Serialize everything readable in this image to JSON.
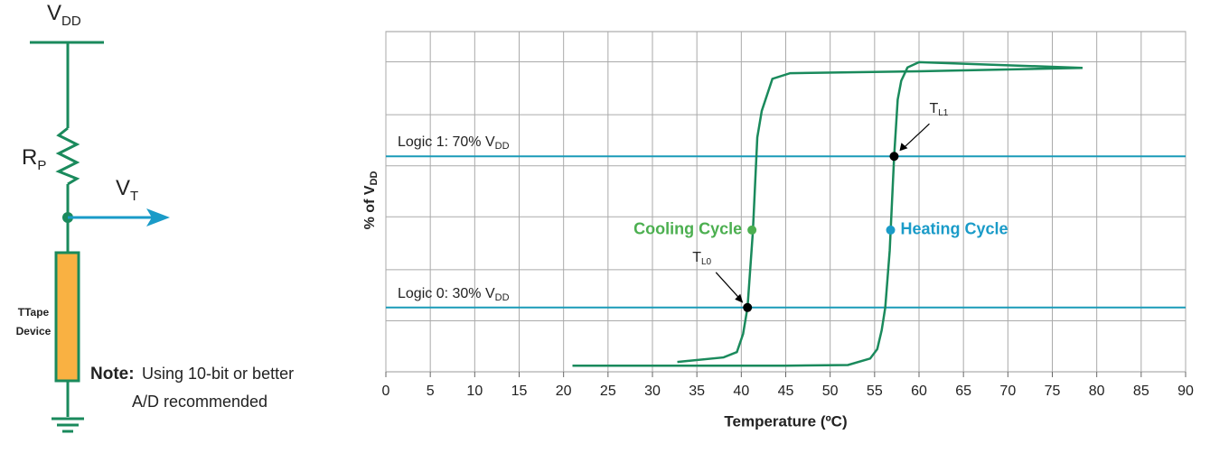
{
  "diagram": {
    "supply": {
      "text": "V",
      "sub": "DD"
    },
    "resistor": {
      "text": "R",
      "sub": "P"
    },
    "output": {
      "text": "V",
      "sub": "T"
    },
    "device": [
      "TTape",
      "Device"
    ],
    "note": {
      "label": "Note:",
      "lines": [
        "Using 10-bit or better",
        "A/D recommended"
      ]
    }
  },
  "chart_data": {
    "type": "line",
    "x_label": "Temperature (ºC)",
    "y_label": {
      "text": "% of V",
      "sub": "DD"
    },
    "xlim": [
      0,
      90
    ],
    "xticks": [
      0,
      5,
      10,
      15,
      20,
      25,
      30,
      35,
      40,
      45,
      50,
      55,
      60,
      65,
      70,
      75,
      80,
      85,
      90
    ],
    "ylim": [
      13,
      103
    ],
    "yticks": [
      26.5,
      40,
      54,
      67.5,
      81,
      95
    ],
    "grid": true,
    "series": [
      {
        "name": "Heating Cycle",
        "color": "#1a8a5c",
        "x": [
          21,
          45,
          52,
          54.5,
          55.3,
          55.8,
          56.2,
          56.7,
          57.2,
          57.6,
          58,
          58.7,
          60,
          78.4
        ],
        "values": [
          14.6,
          14.6,
          14.8,
          16.5,
          19,
          24,
          30,
          45,
          70,
          85,
          90,
          93.5,
          94.9,
          93.4
        ]
      },
      {
        "name": "Cooling Cycle",
        "color": "#1a8a5c",
        "x": [
          78.4,
          60,
          45.5,
          43.5,
          42.3,
          41.8,
          41.3,
          40.7,
          40.2,
          39.5,
          38,
          32.8
        ],
        "values": [
          93.4,
          92.5,
          92,
          90.5,
          82,
          75,
          50,
          30,
          23,
          18.2,
          16.8,
          15.6
        ]
      }
    ],
    "thresholds": [
      {
        "text": "Logic 1: 70% V",
        "sub": "DD",
        "value": 70,
        "color": "#1a9bb8"
      },
      {
        "text": "Logic 0: 30% V",
        "sub": "DD",
        "value": 30,
        "color": "#1a9bb8"
      }
    ],
    "points": [
      {
        "text": "T",
        "sub": "L1",
        "x": 57.2,
        "y": 70
      },
      {
        "text": "T",
        "sub": "L0",
        "x": 40.7,
        "y": 30
      }
    ],
    "cycle_labels": [
      {
        "text": "Cooling Cycle",
        "x": 41.2,
        "y": 50.5,
        "color": "#4caf50",
        "side": "left"
      },
      {
        "text": "Heating Cycle",
        "x": 56.8,
        "y": 50.5,
        "color": "#1a9bc8",
        "side": "right"
      }
    ]
  }
}
